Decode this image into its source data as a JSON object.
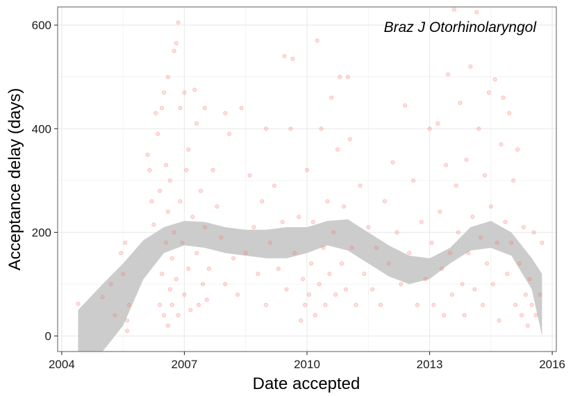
{
  "chart_data": {
    "type": "scatter",
    "title": "",
    "annotation": "Braz J Otorhinolaryngol",
    "xlabel": "Date accepted",
    "ylabel": "Acceptance delay (days)",
    "xlim": [
      2003.9,
      2016.1
    ],
    "ylim": [
      -30,
      635
    ],
    "x_ticks": [
      2004,
      2007,
      2010,
      2013,
      2016
    ],
    "y_ticks": [
      0,
      200,
      400,
      600
    ],
    "grid": true,
    "point_color": "#f8766d",
    "band_color": "#cccccc",
    "smooth": {
      "x": [
        2004.4,
        2005.0,
        2005.5,
        2006.0,
        2006.5,
        2007.0,
        2007.5,
        2008.0,
        2008.5,
        2009.0,
        2009.5,
        2010.0,
        2010.5,
        2011.0,
        2011.5,
        2012.0,
        2012.5,
        2013.0,
        2013.5,
        2014.0,
        2014.5,
        2015.0,
        2015.5,
        2015.75
      ],
      "lower": [
        -30,
        -30,
        20,
        110,
        160,
        175,
        170,
        160,
        155,
        150,
        150,
        160,
        175,
        165,
        140,
        115,
        100,
        110,
        140,
        165,
        170,
        155,
        90,
        0
      ],
      "upper": [
        50,
        100,
        140,
        185,
        210,
        222,
        220,
        210,
        205,
        205,
        210,
        210,
        222,
        225,
        200,
        175,
        155,
        150,
        170,
        210,
        222,
        200,
        150,
        120
      ]
    },
    "points": [
      [
        2004.4,
        62
      ],
      [
        2005.0,
        75
      ],
      [
        2005.2,
        100
      ],
      [
        2005.3,
        40
      ],
      [
        2005.45,
        160
      ],
      [
        2005.5,
        120
      ],
      [
        2005.55,
        180
      ],
      [
        2005.6,
        10
      ],
      [
        2005.6,
        30
      ],
      [
        2005.65,
        60
      ],
      [
        2006.1,
        350
      ],
      [
        2006.15,
        320
      ],
      [
        2006.2,
        260
      ],
      [
        2006.25,
        215
      ],
      [
        2006.3,
        430
      ],
      [
        2006.35,
        390
      ],
      [
        2006.4,
        280
      ],
      [
        2006.4,
        60
      ],
      [
        2006.45,
        440
      ],
      [
        2006.45,
        120
      ],
      [
        2006.5,
        470
      ],
      [
        2006.5,
        40
      ],
      [
        2006.55,
        330
      ],
      [
        2006.55,
        180
      ],
      [
        2006.6,
        500
      ],
      [
        2006.6,
        240
      ],
      [
        2006.6,
        20
      ],
      [
        2006.65,
        300
      ],
      [
        2006.65,
        90
      ],
      [
        2006.7,
        150
      ],
      [
        2006.7,
        60
      ],
      [
        2006.75,
        550
      ],
      [
        2006.75,
        200
      ],
      [
        2006.8,
        565
      ],
      [
        2006.8,
        110
      ],
      [
        2006.85,
        605
      ],
      [
        2006.85,
        40
      ],
      [
        2006.9,
        440
      ],
      [
        2006.9,
        260
      ],
      [
        2006.95,
        180
      ],
      [
        2007.0,
        470
      ],
      [
        2007.0,
        80
      ],
      [
        2007.05,
        320
      ],
      [
        2007.1,
        360
      ],
      [
        2007.1,
        130
      ],
      [
        2007.15,
        50
      ],
      [
        2007.2,
        230
      ],
      [
        2007.25,
        475
      ],
      [
        2007.3,
        410
      ],
      [
        2007.3,
        160
      ],
      [
        2007.35,
        60
      ],
      [
        2007.4,
        280
      ],
      [
        2007.45,
        100
      ],
      [
        2007.5,
        440
      ],
      [
        2007.5,
        210
      ],
      [
        2007.55,
        70
      ],
      [
        2007.6,
        130
      ],
      [
        2007.7,
        320
      ],
      [
        2007.8,
        250
      ],
      [
        2007.9,
        190
      ],
      [
        2008.0,
        430
      ],
      [
        2008.0,
        100
      ],
      [
        2008.1,
        390
      ],
      [
        2008.2,
        150
      ],
      [
        2008.3,
        80
      ],
      [
        2008.4,
        440
      ],
      [
        2008.5,
        160
      ],
      [
        2008.6,
        310
      ],
      [
        2008.7,
        210
      ],
      [
        2008.8,
        120
      ],
      [
        2008.9,
        260
      ],
      [
        2009.0,
        400
      ],
      [
        2009.0,
        60
      ],
      [
        2009.1,
        180
      ],
      [
        2009.2,
        290
      ],
      [
        2009.3,
        130
      ],
      [
        2009.4,
        220
      ],
      [
        2009.45,
        540
      ],
      [
        2009.5,
        90
      ],
      [
        2009.6,
        400
      ],
      [
        2009.65,
        535
      ],
      [
        2009.7,
        160
      ],
      [
        2009.8,
        230
      ],
      [
        2009.85,
        30
      ],
      [
        2009.9,
        110
      ],
      [
        2009.95,
        60
      ],
      [
        2010.0,
        320
      ],
      [
        2010.05,
        80
      ],
      [
        2010.1,
        140
      ],
      [
        2010.15,
        220
      ],
      [
        2010.2,
        40
      ],
      [
        2010.25,
        570
      ],
      [
        2010.3,
        100
      ],
      [
        2010.35,
        400
      ],
      [
        2010.4,
        170
      ],
      [
        2010.45,
        60
      ],
      [
        2010.5,
        260
      ],
      [
        2010.55,
        120
      ],
      [
        2010.6,
        460
      ],
      [
        2010.65,
        200
      ],
      [
        2010.7,
        80
      ],
      [
        2010.75,
        360
      ],
      [
        2010.8,
        500
      ],
      [
        2010.85,
        140
      ],
      [
        2010.9,
        250
      ],
      [
        2010.95,
        90
      ],
      [
        2011.0,
        500
      ],
      [
        2011.05,
        380
      ],
      [
        2011.1,
        170
      ],
      [
        2011.2,
        60
      ],
      [
        2011.3,
        290
      ],
      [
        2011.4,
        120
      ],
      [
        2011.5,
        210
      ],
      [
        2011.6,
        90
      ],
      [
        2011.7,
        170
      ],
      [
        2011.8,
        60
      ],
      [
        2011.9,
        260
      ],
      [
        2012.0,
        140
      ],
      [
        2012.1,
        335
      ],
      [
        2012.2,
        200
      ],
      [
        2012.3,
        100
      ],
      [
        2012.4,
        445
      ],
      [
        2012.5,
        160
      ],
      [
        2012.6,
        300
      ],
      [
        2012.7,
        60
      ],
      [
        2012.8,
        220
      ],
      [
        2012.9,
        110
      ],
      [
        2013.0,
        400
      ],
      [
        2013.05,
        180
      ],
      [
        2013.1,
        60
      ],
      [
        2013.2,
        410
      ],
      [
        2013.25,
        240
      ],
      [
        2013.3,
        130
      ],
      [
        2013.35,
        40
      ],
      [
        2013.4,
        330
      ],
      [
        2013.45,
        505
      ],
      [
        2013.5,
        160
      ],
      [
        2013.55,
        80
      ],
      [
        2013.6,
        630
      ],
      [
        2013.65,
        290
      ],
      [
        2013.7,
        200
      ],
      [
        2013.75,
        450
      ],
      [
        2013.8,
        100
      ],
      [
        2013.85,
        40
      ],
      [
        2013.9,
        340
      ],
      [
        2013.95,
        160
      ],
      [
        2014.0,
        520
      ],
      [
        2014.05,
        230
      ],
      [
        2014.1,
        90
      ],
      [
        2014.15,
        625
      ],
      [
        2014.2,
        400
      ],
      [
        2014.25,
        190
      ],
      [
        2014.3,
        60
      ],
      [
        2014.35,
        310
      ],
      [
        2014.4,
        140
      ],
      [
        2014.45,
        470
      ],
      [
        2014.5,
        250
      ],
      [
        2014.55,
        100
      ],
      [
        2014.6,
        495
      ],
      [
        2014.65,
        180
      ],
      [
        2014.7,
        30
      ],
      [
        2014.75,
        370
      ],
      [
        2014.8,
        460
      ],
      [
        2014.85,
        220
      ],
      [
        2014.9,
        120
      ],
      [
        2014.95,
        430
      ],
      [
        2015.0,
        180
      ],
      [
        2015.05,
        300
      ],
      [
        2015.1,
        60
      ],
      [
        2015.15,
        360
      ],
      [
        2015.2,
        140
      ],
      [
        2015.25,
        40
      ],
      [
        2015.3,
        210
      ],
      [
        2015.35,
        80
      ],
      [
        2015.4,
        20
      ],
      [
        2015.45,
        110
      ],
      [
        2015.5,
        60
      ],
      [
        2015.55,
        200
      ],
      [
        2015.6,
        40
      ],
      [
        2015.7,
        80
      ],
      [
        2015.75,
        180
      ]
    ]
  }
}
